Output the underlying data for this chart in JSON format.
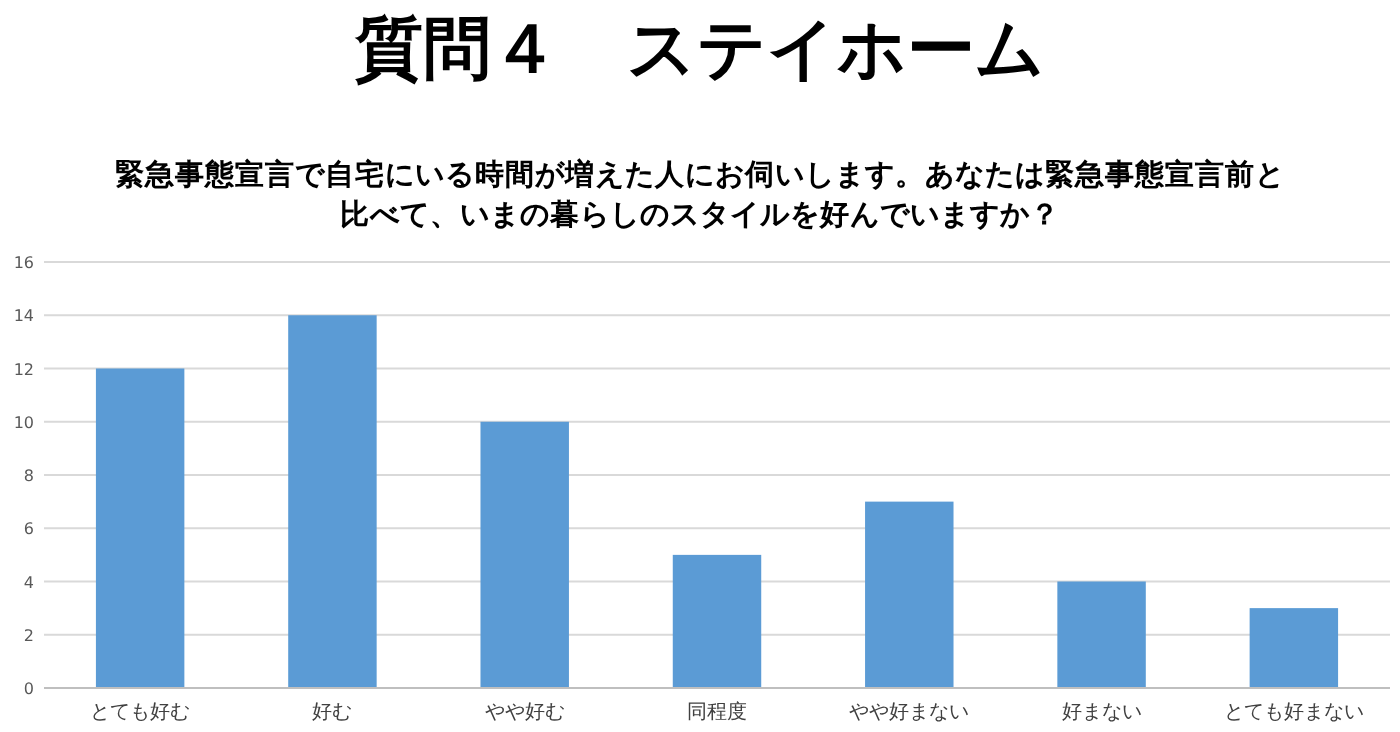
{
  "chart_data": {
    "type": "bar",
    "title": "質問４　ステイホーム",
    "subtitle": "緊急事態宣言で自宅にいる時間が増えた人にお伺いします。あなたは緊急事態宣言前と比べて、いまの暮らしのスタイルを好んでいますか？",
    "categories": [
      "とても好む",
      "好む",
      "やや好む",
      "同程度",
      "やや好まない",
      "好まない",
      "とても好まない"
    ],
    "values": [
      12,
      14,
      10,
      5,
      7,
      4,
      3
    ],
    "color": "#5b9bd5",
    "ylim": [
      0,
      16
    ],
    "yticks": [
      0,
      2,
      4,
      6,
      8,
      10,
      12,
      14,
      16
    ],
    "grid": "y"
  }
}
